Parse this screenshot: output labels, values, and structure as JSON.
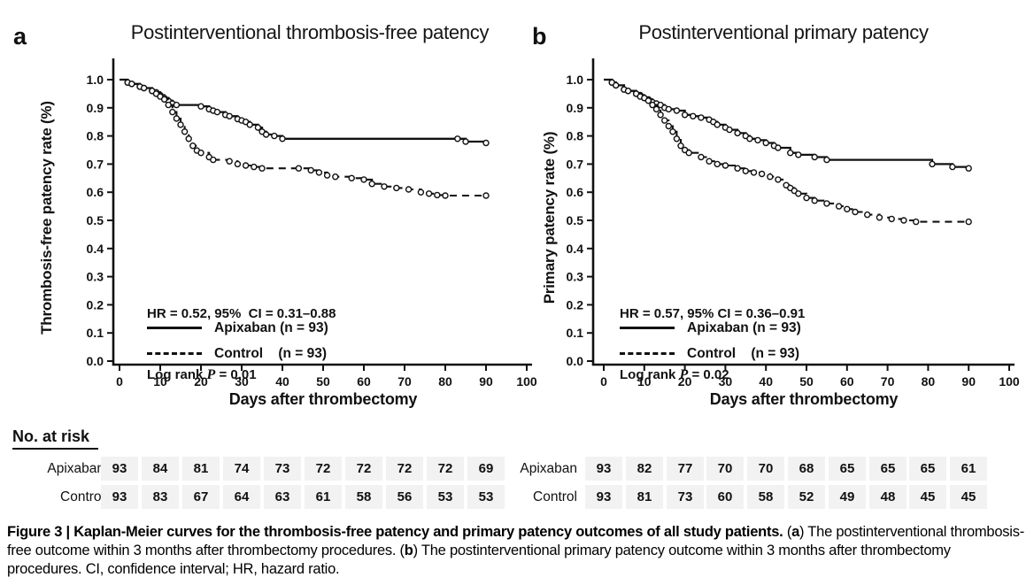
{
  "chart_data": [
    {
      "type": "line",
      "variant": "kaplan-meier-step",
      "panel_label": "a",
      "title": "Postinterventional thrombosis-free patency",
      "ylabel": "Thrombosis-free patency rate (%)",
      "xlabel": "Days after thrombectomy",
      "xlim": [
        0,
        100
      ],
      "ylim": [
        0.0,
        1.0
      ],
      "xticks": [
        0,
        10,
        20,
        30,
        40,
        50,
        60,
        70,
        80,
        90,
        100
      ],
      "yticks": [
        0.0,
        0.1,
        0.2,
        0.3,
        0.4,
        0.5,
        0.6,
        0.7,
        0.8,
        0.9,
        1.0
      ],
      "grid": false,
      "annotation": {
        "hr_text": "HR = 0.52, 95%  CI = 0.31–0.88",
        "logrank_pre": "Log rank ",
        "logrank_p": "P",
        "logrank_post": " = 0.01"
      },
      "legend": [
        {
          "name": "Apixaban (n = 93)",
          "style": "solid"
        },
        {
          "name": "Control    (n = 93)",
          "style": "dashed"
        }
      ],
      "series": [
        {
          "name": "Apixaban",
          "style": "solid",
          "points": [
            [
              0,
              1.0
            ],
            [
              2,
              0.99
            ],
            [
              3,
              0.985
            ],
            [
              5,
              0.975
            ],
            [
              6,
              0.97
            ],
            [
              8,
              0.96
            ],
            [
              9,
              0.955
            ],
            [
              10,
              0.945
            ],
            [
              11,
              0.935
            ],
            [
              12,
              0.925
            ],
            [
              13,
              0.915
            ],
            [
              14,
              0.91
            ],
            [
              20,
              0.905
            ],
            [
              22,
              0.895
            ],
            [
              23,
              0.89
            ],
            [
              24,
              0.885
            ],
            [
              26,
              0.875
            ],
            [
              27,
              0.87
            ],
            [
              29,
              0.86
            ],
            [
              30,
              0.855
            ],
            [
              31,
              0.85
            ],
            [
              32,
              0.84
            ],
            [
              34,
              0.83
            ],
            [
              35,
              0.815
            ],
            [
              36,
              0.805
            ],
            [
              38,
              0.8
            ],
            [
              40,
              0.79
            ],
            [
              83,
              0.79
            ],
            [
              85,
              0.78
            ],
            [
              90,
              0.775
            ]
          ]
        },
        {
          "name": "Control",
          "style": "dashed",
          "points": [
            [
              0,
              1.0
            ],
            [
              2,
              0.99
            ],
            [
              3,
              0.985
            ],
            [
              5,
              0.975
            ],
            [
              6,
              0.97
            ],
            [
              8,
              0.96
            ],
            [
              9,
              0.95
            ],
            [
              10,
              0.94
            ],
            [
              11,
              0.93
            ],
            [
              12,
              0.91
            ],
            [
              13,
              0.885
            ],
            [
              14,
              0.862
            ],
            [
              15,
              0.84
            ],
            [
              16,
              0.815
            ],
            [
              17,
              0.79
            ],
            [
              18,
              0.765
            ],
            [
              19,
              0.748
            ],
            [
              20,
              0.74
            ],
            [
              22,
              0.725
            ],
            [
              23,
              0.715
            ],
            [
              27,
              0.71
            ],
            [
              29,
              0.7
            ],
            [
              31,
              0.695
            ],
            [
              33,
              0.69
            ],
            [
              35,
              0.685
            ],
            [
              44,
              0.685
            ],
            [
              47,
              0.678
            ],
            [
              49,
              0.67
            ],
            [
              51,
              0.66
            ],
            [
              53,
              0.655
            ],
            [
              57,
              0.65
            ],
            [
              60,
              0.645
            ],
            [
              62,
              0.63
            ],
            [
              65,
              0.62
            ],
            [
              68,
              0.615
            ],
            [
              71,
              0.61
            ],
            [
              74,
              0.6
            ],
            [
              76,
              0.595
            ],
            [
              78,
              0.59
            ],
            [
              80,
              0.588
            ],
            [
              90,
              0.588
            ]
          ]
        }
      ]
    },
    {
      "type": "line",
      "variant": "kaplan-meier-step",
      "panel_label": "b",
      "title": "Postinterventional primary patency",
      "ylabel": "Primary patency rate (%)",
      "xlabel": "Days after thrombectomy",
      "xlim": [
        0,
        100
      ],
      "ylim": [
        0.0,
        1.0
      ],
      "xticks": [
        0,
        10,
        20,
        30,
        40,
        50,
        60,
        70,
        80,
        90,
        100
      ],
      "yticks": [
        0.0,
        0.1,
        0.2,
        0.3,
        0.4,
        0.5,
        0.6,
        0.7,
        0.8,
        0.9,
        1.0
      ],
      "grid": false,
      "annotation": {
        "hr_text": "HR = 0.57, 95% CI = 0.36–0.91",
        "logrank_pre": "Log rank ",
        "logrank_p": "P",
        "logrank_post": " = 0.02"
      },
      "legend": [
        {
          "name": "Apixaban (n = 93)",
          "style": "solid"
        },
        {
          "name": "Control    (n = 93)",
          "style": "dashed"
        }
      ],
      "series": [
        {
          "name": "Apixaban",
          "style": "solid",
          "points": [
            [
              0,
              1.0
            ],
            [
              2,
              0.99
            ],
            [
              3,
              0.98
            ],
            [
              5,
              0.965
            ],
            [
              6,
              0.96
            ],
            [
              8,
              0.95
            ],
            [
              9,
              0.945
            ],
            [
              10,
              0.935
            ],
            [
              11,
              0.93
            ],
            [
              12,
              0.92
            ],
            [
              13,
              0.915
            ],
            [
              14,
              0.91
            ],
            [
              15,
              0.9
            ],
            [
              16,
              0.895
            ],
            [
              18,
              0.89
            ],
            [
              20,
              0.875
            ],
            [
              22,
              0.87
            ],
            [
              24,
              0.865
            ],
            [
              26,
              0.858
            ],
            [
              27,
              0.85
            ],
            [
              28,
              0.84
            ],
            [
              30,
              0.83
            ],
            [
              31,
              0.822
            ],
            [
              33,
              0.81
            ],
            [
              35,
              0.8
            ],
            [
              36,
              0.79
            ],
            [
              38,
              0.785
            ],
            [
              40,
              0.775
            ],
            [
              42,
              0.765
            ],
            [
              43,
              0.758
            ],
            [
              46,
              0.74
            ],
            [
              48,
              0.733
            ],
            [
              52,
              0.725
            ],
            [
              55,
              0.715
            ],
            [
              81,
              0.7
            ],
            [
              86,
              0.69
            ],
            [
              90,
              0.685
            ]
          ]
        },
        {
          "name": "Control",
          "style": "dashed",
          "points": [
            [
              0,
              1.0
            ],
            [
              2,
              0.99
            ],
            [
              3,
              0.98
            ],
            [
              5,
              0.965
            ],
            [
              6,
              0.96
            ],
            [
              8,
              0.95
            ],
            [
              9,
              0.94
            ],
            [
              10,
              0.935
            ],
            [
              11,
              0.925
            ],
            [
              12,
              0.91
            ],
            [
              13,
              0.895
            ],
            [
              14,
              0.875
            ],
            [
              15,
              0.855
            ],
            [
              16,
              0.835
            ],
            [
              17,
              0.815
            ],
            [
              18,
              0.79
            ],
            [
              19,
              0.765
            ],
            [
              20,
              0.75
            ],
            [
              21,
              0.74
            ],
            [
              24,
              0.725
            ],
            [
              26,
              0.71
            ],
            [
              28,
              0.7
            ],
            [
              30,
              0.695
            ],
            [
              33,
              0.685
            ],
            [
              35,
              0.675
            ],
            [
              37,
              0.67
            ],
            [
              39,
              0.665
            ],
            [
              41,
              0.655
            ],
            [
              43,
              0.645
            ],
            [
              45,
              0.625
            ],
            [
              46,
              0.615
            ],
            [
              47,
              0.605
            ],
            [
              48,
              0.595
            ],
            [
              50,
              0.58
            ],
            [
              52,
              0.57
            ],
            [
              55,
              0.56
            ],
            [
              58,
              0.55
            ],
            [
              60,
              0.54
            ],
            [
              62,
              0.53
            ],
            [
              65,
              0.52
            ],
            [
              68,
              0.51
            ],
            [
              71,
              0.505
            ],
            [
              74,
              0.5
            ],
            [
              77,
              0.495
            ],
            [
              90,
              0.495
            ]
          ]
        }
      ]
    }
  ],
  "risk_table": {
    "header": "No. at risk",
    "timepoints": [
      0,
      10,
      20,
      30,
      40,
      50,
      60,
      70,
      80,
      90
    ],
    "tables": [
      {
        "panel": "a",
        "rows": [
          {
            "label": "Apixaban",
            "values": [
              93,
              84,
              81,
              74,
              73,
              72,
              72,
              72,
              72,
              69
            ]
          },
          {
            "label": "Control",
            "values": [
              93,
              83,
              67,
              64,
              63,
              61,
              58,
              56,
              53,
              53
            ]
          }
        ]
      },
      {
        "panel": "b",
        "rows": [
          {
            "label": "Apixaban",
            "values": [
              93,
              82,
              77,
              70,
              70,
              68,
              65,
              65,
              65,
              61
            ]
          },
          {
            "label": "Control",
            "values": [
              93,
              81,
              73,
              60,
              58,
              52,
              49,
              48,
              45,
              45
            ]
          }
        ]
      }
    ]
  },
  "caption": {
    "segments": [
      {
        "text": "Figure 3 | Kaplan-Meier curves for the thrombosis-free patency and primary patency outcomes of all study patients. ",
        "bold": true
      },
      {
        "text": "(",
        "bold": false
      },
      {
        "text": "a",
        "bold": true
      },
      {
        "text": ") The postinterventional thrombosis-free outcome within 3 months after thrombectomy procedures. (",
        "bold": false
      },
      {
        "text": "b",
        "bold": true
      },
      {
        "text": ") The postinterventional primary patency outcome within 3 months after thrombectomy procedures. CI, confidence interval; HR, hazard ratio.",
        "bold": false
      }
    ]
  }
}
